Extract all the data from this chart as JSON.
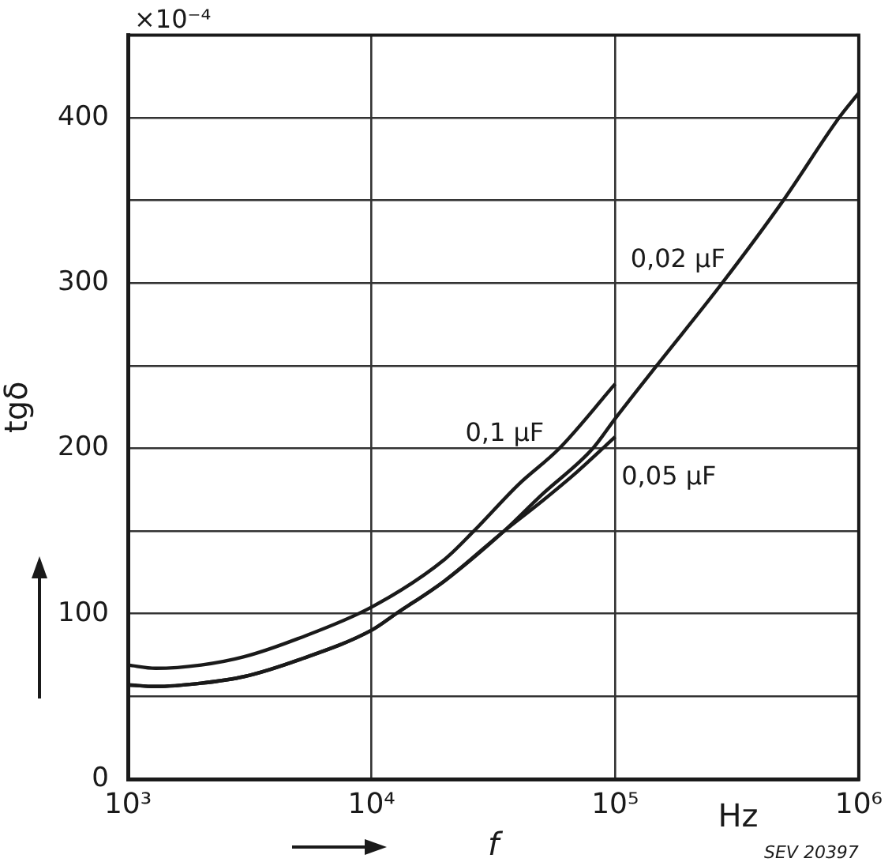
{
  "chart_data": {
    "type": "line",
    "xlabel": "f",
    "ylabel": "tgδ",
    "log": "x",
    "grid": true,
    "legend": false,
    "marker": "none",
    "line_style": "solid",
    "xlim": [
      1000,
      1000000
    ],
    "xticks": [
      {
        "value": 1000,
        "label": "10³"
      },
      {
        "value": 10000,
        "label": "10⁴"
      },
      {
        "value": 100000,
        "label": "10⁵"
      },
      {
        "value": 1000000,
        "label": "10⁶"
      }
    ],
    "ylim": [
      0,
      450
    ],
    "yticks": [
      0,
      {
        "value": 50,
        "label": null
      },
      100,
      {
        "value": 150,
        "label": null
      },
      200,
      {
        "value": 250,
        "label": null
      },
      300,
      {
        "value": 350,
        "label": null
      },
      400
    ],
    "annotations": [
      "×10⁻⁴",
      "Hz",
      "SEV 20397"
    ],
    "series": [
      {
        "name": "0,1 µF",
        "color": "#1a1a1a",
        "x": [
          1000,
          1300,
          2000,
          3000,
          5000,
          10000,
          20000,
          26300,
          40000,
          59000,
          100000
        ],
        "values": [
          69,
          67,
          69,
          74,
          85,
          104,
          133,
          150,
          178,
          200,
          239
        ]
      },
      {
        "name": "0,05 µF",
        "color": "#1a1a1a",
        "x": [
          1000,
          1300,
          2000,
          3000,
          5000,
          10000,
          12600,
          20000,
          35000,
          50000,
          70000,
          100000
        ],
        "values": [
          57,
          56,
          58,
          62,
          72,
          90,
          100,
          120,
          150,
          168,
          186,
          207
        ]
      },
      {
        "name": "0,02 µF",
        "color": "#1a1a1a",
        "x": [
          1000,
          1300,
          2000,
          3000,
          5000,
          10000,
          12600,
          20000,
          35000,
          50000,
          81000,
          100000,
          148000,
          275000,
          490000,
          830000,
          1000000
        ],
        "values": [
          57,
          56,
          58,
          62,
          72,
          90,
          100,
          120,
          150,
          172,
          200,
          218,
          250,
          300,
          350,
          400,
          415
        ]
      }
    ]
  }
}
